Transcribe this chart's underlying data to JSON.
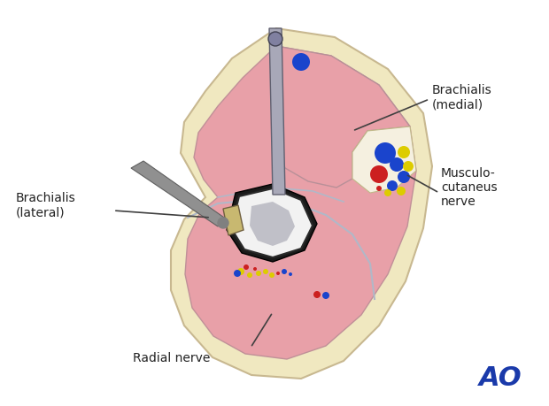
{
  "bg_color": "#ffffff",
  "outer_skin_color": "#f0e8c0",
  "muscle_color": "#e8a0a8",
  "fascia_color": "#c8c8d8",
  "bone_outer_color": "#1a1a1a",
  "bone_cortex_color": "#f0f0f0",
  "bone_marrow_color": "#c0c0c8",
  "plate_color": "#c8b870",
  "retractor_color": "#909090",
  "nerve_white_color": "#f5f0e0",
  "label_brachialis_medial": "Brachialis\n(medial)",
  "label_brachialis_lateral": "Brachialis\n(lateral)",
  "label_musculocutaneus": "Musculo-\ncutaneus\nnerve",
  "label_radial": "Radial nerve",
  "ao_color": "#1a3aaa",
  "label_fontsize": 10,
  "line_color": "#404040",
  "dot_red": "#cc2020",
  "dot_blue": "#1a44cc",
  "dot_yellow": "#ddcc00"
}
